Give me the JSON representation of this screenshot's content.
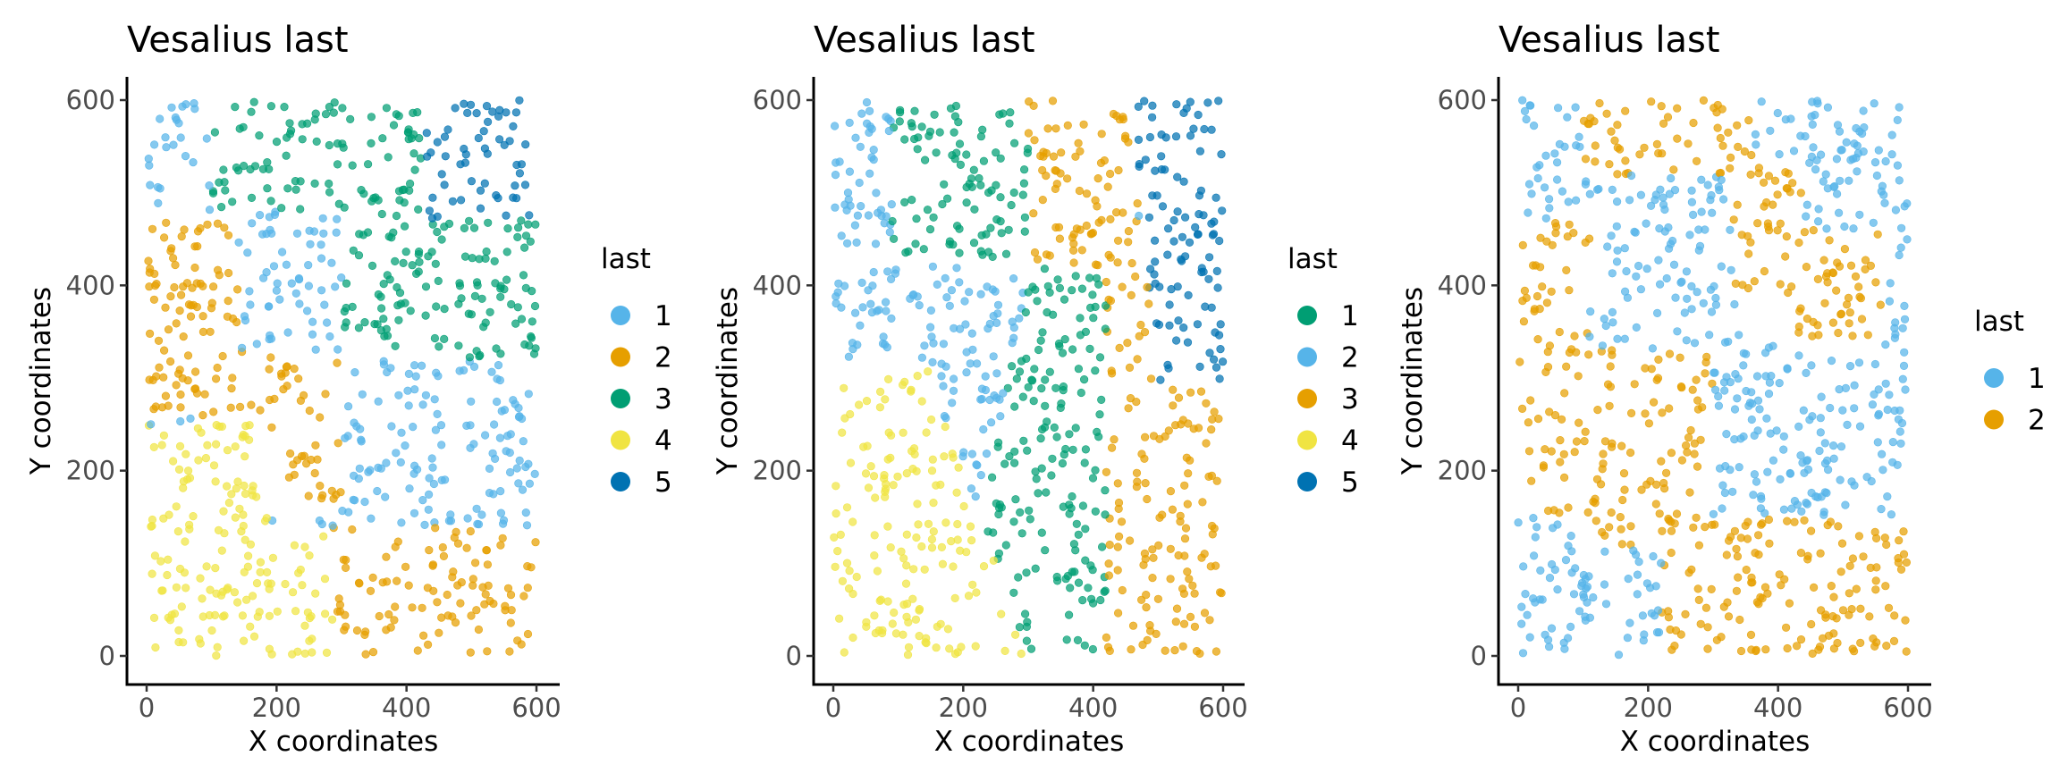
{
  "chart_data": [
    {
      "type": "scatter",
      "title": "Vesalius last",
      "xlabel": "X coordinates",
      "ylabel": "Y coordinates",
      "xlim": [
        0,
        600
      ],
      "ylim": [
        0,
        600
      ],
      "xticks": [
        0,
        200,
        400,
        600
      ],
      "yticks": [
        0,
        200,
        400,
        600
      ],
      "legend": {
        "title": "last",
        "placement": "right"
      },
      "grid": false,
      "series": [
        {
          "name": "1",
          "color": "#56B4E9",
          "region": "upper-left and right-center background"
        },
        {
          "name": "2",
          "color": "#E69F00",
          "region": "left-middle band and bottom-center"
        },
        {
          "name": "3",
          "color": "#009E73",
          "region": "top-center and right-upper"
        },
        {
          "name": "4",
          "color": "#F0E442",
          "region": "bottom-left"
        },
        {
          "name": "5",
          "color": "#0072B2",
          "region": "top-right corner"
        }
      ]
    },
    {
      "type": "scatter",
      "title": "Vesalius last",
      "xlabel": "X coordinates",
      "ylabel": "Y coordinates",
      "xlim": [
        0,
        600
      ],
      "ylim": [
        0,
        600
      ],
      "xticks": [
        0,
        200,
        400,
        600
      ],
      "yticks": [
        0,
        200,
        400,
        600
      ],
      "legend": {
        "title": "last",
        "placement": "right"
      },
      "grid": false,
      "series": [
        {
          "name": "1",
          "color": "#009E73",
          "region": "center diagonal band"
        },
        {
          "name": "2",
          "color": "#56B4E9",
          "region": "left background"
        },
        {
          "name": "3",
          "color": "#E69F00",
          "region": "right-center band"
        },
        {
          "name": "4",
          "color": "#F0E442",
          "region": "bottom-left"
        },
        {
          "name": "5",
          "color": "#0072B2",
          "region": "top-right corner"
        }
      ]
    },
    {
      "type": "scatter",
      "title": "Vesalius last",
      "xlabel": "X coordinates",
      "ylabel": "Y coordinates",
      "xlim": [
        0,
        600
      ],
      "ylim": [
        0,
        600
      ],
      "xticks": [
        0,
        200,
        400,
        600
      ],
      "yticks": [
        0,
        200,
        400,
        600
      ],
      "legend": {
        "title": "last",
        "placement": "right"
      },
      "grid": false,
      "series": [
        {
          "name": "1",
          "color": "#56B4E9",
          "region": "background"
        },
        {
          "name": "2",
          "color": "#E69F00",
          "region": "left band, top ring and bottom-center"
        }
      ]
    }
  ]
}
